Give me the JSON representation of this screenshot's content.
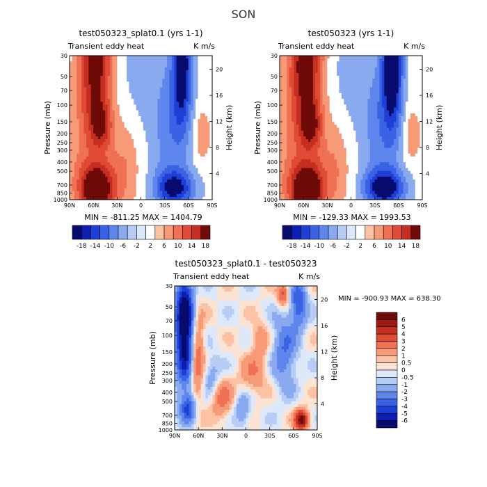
{
  "title": "SON",
  "chart_data": [
    {
      "type": "heatmap",
      "id": "panel-a",
      "title": "test050323_splat0.1 (yrs 1-1)",
      "left_label": "Transient eddy heat",
      "right_label": "K m/s",
      "ylabel": "Pressure (mb)",
      "ylabel_right": "Height (km)",
      "x_ticks": [
        "90N",
        "60N",
        "30N",
        "0",
        "30S",
        "60S",
        "90S"
      ],
      "y_ticks": [
        "30",
        "50",
        "70",
        "100",
        "150",
        "200",
        "250",
        "300",
        "400",
        "500",
        "700",
        "850",
        "1000"
      ],
      "y_ticks_right": [
        "20",
        "16",
        "12",
        "8",
        "4"
      ],
      "min_label": "MIN = -811.25",
      "max_label": "MAX = 1404.79",
      "colorbar_labels": [
        "-18",
        "-14",
        "-10",
        "-6",
        "-2",
        "2",
        "6",
        "10",
        "14",
        "18"
      ],
      "levels": [
        -18,
        -14,
        -10,
        -6,
        -2,
        2,
        6,
        10,
        14,
        18
      ]
    },
    {
      "type": "heatmap",
      "id": "panel-b",
      "title": "test050323 (yrs 1-1)",
      "left_label": "Transient eddy heat",
      "right_label": "K m/s",
      "ylabel": "Pressure (mb)",
      "ylabel_right": "Height (km)",
      "x_ticks": [
        "90N",
        "60N",
        "30N",
        "0",
        "30S",
        "60S",
        "90S"
      ],
      "y_ticks": [
        "30",
        "50",
        "70",
        "100",
        "150",
        "200",
        "250",
        "300",
        "400",
        "500",
        "700",
        "850",
        "1000"
      ],
      "y_ticks_right": [
        "20",
        "16",
        "12",
        "8",
        "4"
      ],
      "min_label": "MIN = -129.33",
      "max_label": "MAX = 1993.53",
      "colorbar_labels": [
        "-18",
        "-14",
        "-10",
        "-6",
        "-2",
        "2",
        "6",
        "10",
        "14",
        "18"
      ],
      "levels": [
        -18,
        -14,
        -10,
        -6,
        -2,
        2,
        6,
        10,
        14,
        18
      ]
    },
    {
      "type": "heatmap",
      "id": "panel-diff",
      "title": "test050323_splat0.1 - test050323",
      "left_label": "Transient eddy heat",
      "right_label": "K m/s",
      "ylabel": "Pressure (mb)",
      "ylabel_right": "Height (km)",
      "x_ticks": [
        "90N",
        "60N",
        "30N",
        "0",
        "30S",
        "60S",
        "90S"
      ],
      "y_ticks": [
        "30",
        "50",
        "70",
        "100",
        "150",
        "200",
        "250",
        "300",
        "400",
        "500",
        "700",
        "850",
        "1000"
      ],
      "y_ticks_right": [
        "20",
        "16",
        "12",
        "8",
        "4"
      ],
      "minmax_label": "MIN = -900.93   MAX = 638.30",
      "colorbar_labels": [
        "6",
        "5",
        "4",
        "3",
        "2",
        "1",
        "0.5",
        "0",
        "-0.5",
        "-1",
        "-2",
        "-3",
        "-4",
        "-5",
        "-6"
      ],
      "levels": [
        6,
        5,
        4,
        3,
        2,
        1,
        0.5,
        0,
        -0.5,
        -1,
        -2,
        -3,
        -4,
        -5,
        -6
      ]
    }
  ],
  "colors": {
    "colormap_16": [
      "#080b6e",
      "#0d1fb3",
      "#1e3fd6",
      "#3a62e5",
      "#5f86ec",
      "#8aaaf0",
      "#b7cdf6",
      "#dde8fb",
      "#fde3d3",
      "#fbc2a4",
      "#f79a78",
      "#ef7052",
      "#e04b35",
      "#c52f21",
      "#9d1a12",
      "#6e0a07"
    ]
  }
}
